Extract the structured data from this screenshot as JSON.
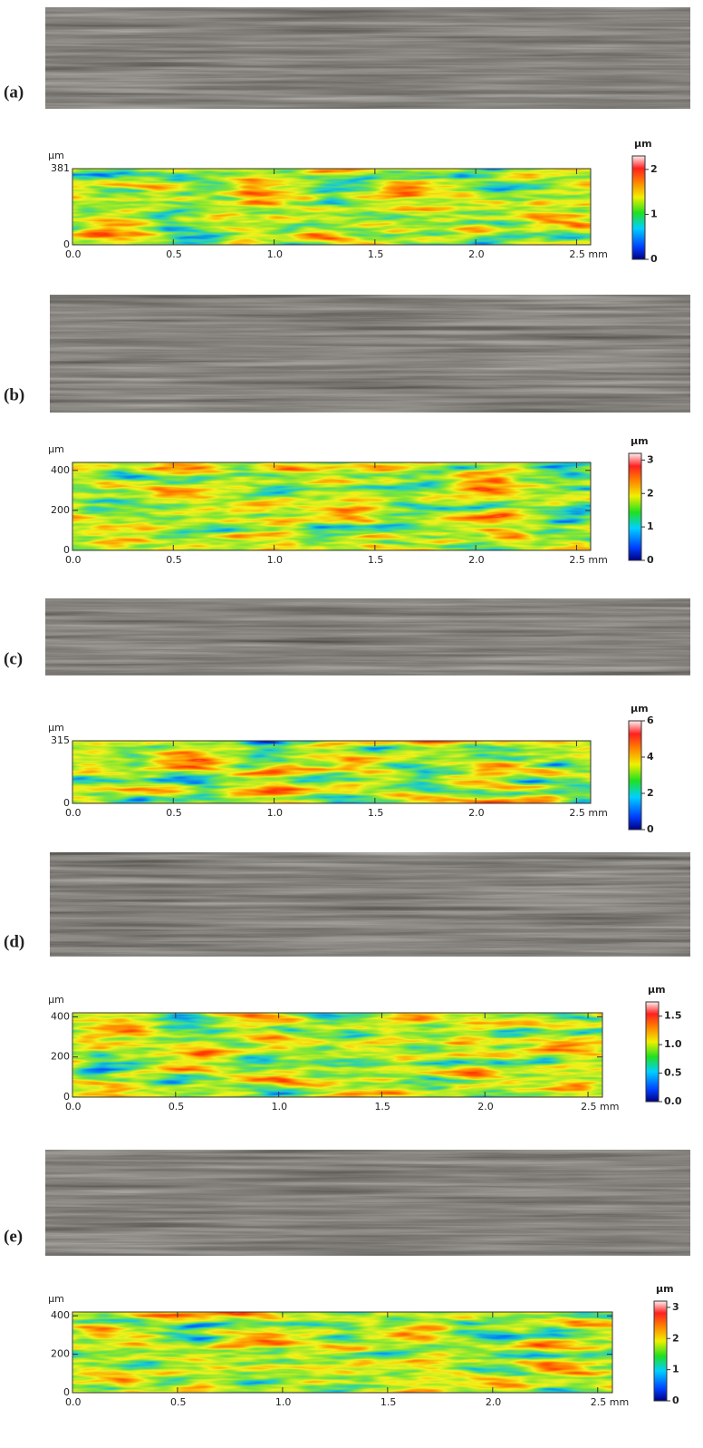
{
  "panels": [
    {
      "label": "(a)",
      "map": {
        "y_label": "µm",
        "xlim": [
          0,
          2.57
        ],
        "ylim": [
          0,
          381
        ],
        "xticks": [
          {
            "value": 0,
            "label": "0.0"
          },
          0.5,
          {
            "value": 1,
            "label": "1.0"
          },
          1.5,
          {
            "value": 2,
            "label": "2.0"
          },
          {
            "value": 2.5,
            "label": "2.5 mm"
          }
        ],
        "yticks": [
          0,
          381
        ]
      },
      "colorbar": {
        "label": "µm",
        "lim": [
          0,
          2.3
        ],
        "ticks": [
          0,
          1,
          2
        ]
      }
    },
    {
      "label": "(b)",
      "map": {
        "y_label": "µm",
        "xlim": [
          0,
          2.57
        ],
        "ylim": [
          0,
          440
        ],
        "xticks": [
          {
            "value": 0,
            "label": "0.0"
          },
          0.5,
          {
            "value": 1,
            "label": "1.0"
          },
          1.5,
          {
            "value": 2,
            "label": "2.0"
          },
          {
            "value": 2.5,
            "label": "2.5 mm"
          }
        ],
        "yticks": [
          0,
          200,
          400
        ]
      },
      "colorbar": {
        "label": "µm",
        "lim": [
          0,
          3.2
        ],
        "ticks": [
          0,
          1,
          2,
          3
        ]
      }
    },
    {
      "label": "(c)",
      "map": {
        "y_label": "µm",
        "xlim": [
          0,
          2.57
        ],
        "ylim": [
          0,
          315
        ],
        "xticks": [
          {
            "value": 0,
            "label": "0.0"
          },
          0.5,
          {
            "value": 1,
            "label": "1.0"
          },
          1.5,
          {
            "value": 2,
            "label": "2.0"
          },
          {
            "value": 2.5,
            "label": "2.5 mm"
          }
        ],
        "yticks": [
          0,
          315
        ]
      },
      "colorbar": {
        "label": "µm",
        "lim": [
          0,
          6
        ],
        "ticks": [
          0,
          2,
          4,
          6
        ]
      }
    },
    {
      "label": "(d)",
      "map": {
        "y_label": "µm",
        "xlim": [
          0,
          2.57
        ],
        "ylim": [
          0,
          420
        ],
        "xticks": [
          {
            "value": 0,
            "label": "0.0"
          },
          0.5,
          {
            "value": 1,
            "label": "1.0"
          },
          1.5,
          {
            "value": 2,
            "label": "2.0"
          },
          {
            "value": 2.5,
            "label": "2.5 mm"
          }
        ],
        "yticks": [
          0,
          200,
          400
        ]
      },
      "colorbar": {
        "label": "µm",
        "lim": [
          0,
          1.75
        ],
        "ticks": [
          {
            "value": 0,
            "label": "0.0"
          },
          0.5,
          {
            "value": 1,
            "label": "1.0"
          },
          1.5
        ]
      }
    },
    {
      "label": "(e)",
      "map": {
        "y_label": "µm",
        "xlim": [
          0,
          2.57
        ],
        "ylim": [
          0,
          420
        ],
        "xticks": [
          {
            "value": 0,
            "label": "0.0"
          },
          0.5,
          {
            "value": 1,
            "label": "1.0"
          },
          1.5,
          {
            "value": 2,
            "label": "2.0"
          },
          {
            "value": 2.5,
            "label": "2.5 mm"
          }
        ],
        "yticks": [
          0,
          200,
          400
        ]
      },
      "colorbar": {
        "label": "µm",
        "lim": [
          0,
          3.2
        ],
        "ticks": [
          0,
          1,
          2,
          3
        ]
      }
    }
  ]
}
